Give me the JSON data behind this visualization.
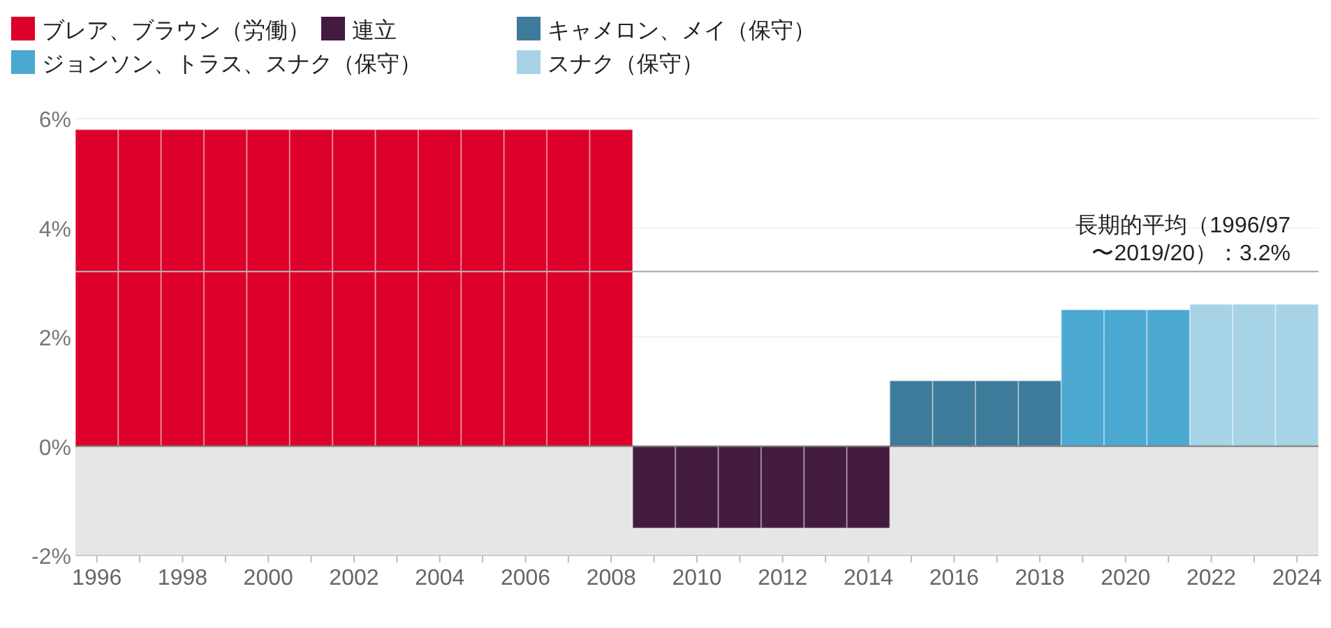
{
  "chart_data": {
    "type": "bar",
    "categories": [
      "1996",
      null,
      "1998",
      null,
      "2000",
      null,
      "2002",
      null,
      "2004",
      null,
      "2006",
      null,
      "2008",
      null,
      "2010",
      null,
      "2012",
      null,
      "2014",
      null,
      "2016",
      null,
      "2018",
      null,
      "2020",
      null,
      "2022",
      null,
      "2024"
    ],
    "series": [
      {
        "name": "ブレア、ブラウン（労働）",
        "color": "#dc002b",
        "values": [
          5.8,
          5.8,
          5.8,
          5.8,
          5.8,
          5.8,
          5.8,
          5.8,
          5.8,
          5.8,
          5.8,
          5.8,
          5.8,
          null,
          null,
          null,
          null,
          null,
          null,
          null,
          null,
          null,
          null,
          null,
          null,
          null,
          null,
          null,
          null
        ]
      },
      {
        "name": "連立",
        "color": "#431a40",
        "values": [
          null,
          null,
          null,
          null,
          null,
          null,
          null,
          null,
          null,
          null,
          null,
          null,
          null,
          -1.5,
          -1.5,
          -1.5,
          -1.5,
          -1.5,
          -1.5,
          null,
          null,
          null,
          null,
          null,
          null,
          null,
          null,
          null,
          null
        ]
      },
      {
        "name": "キャメロン、メイ（保守）",
        "color": "#3e7a99",
        "values": [
          null,
          null,
          null,
          null,
          null,
          null,
          null,
          null,
          null,
          null,
          null,
          null,
          null,
          null,
          null,
          null,
          null,
          null,
          null,
          1.2,
          1.2,
          1.2,
          1.2,
          null,
          null,
          null,
          null,
          null,
          null
        ]
      },
      {
        "name": "ジョンソン、トラス、スナク（保守）",
        "color": "#4ba8d1",
        "values": [
          null,
          null,
          null,
          null,
          null,
          null,
          null,
          null,
          null,
          null,
          null,
          null,
          null,
          null,
          null,
          null,
          null,
          null,
          null,
          null,
          null,
          null,
          null,
          2.5,
          2.5,
          2.5,
          null,
          null,
          null
        ]
      },
      {
        "name": "スナク（保守）",
        "color": "#a7d3e6",
        "values": [
          null,
          null,
          null,
          null,
          null,
          null,
          null,
          null,
          null,
          null,
          null,
          null,
          null,
          null,
          null,
          null,
          null,
          null,
          null,
          null,
          null,
          null,
          null,
          null,
          null,
          null,
          2.6,
          2.6,
          2.6
        ]
      }
    ],
    "ylim": [
      -2,
      6
    ],
    "yticks": [
      {
        "value": -2,
        "label": "-2%"
      },
      {
        "value": 0,
        "label": "0%"
      },
      {
        "value": 2,
        "label": "2%"
      },
      {
        "value": 4,
        "label": "4%"
      },
      {
        "value": 6,
        "label": "6%"
      }
    ],
    "grid": "y",
    "legend": "top left",
    "ref_lines": [
      {
        "axis": "y",
        "value": 3.2,
        "label": "長期的平均（1996/97\n〜2019/20）：3.2%",
        "color": "#b0b0b0"
      }
    ],
    "bands": [
      {
        "axis": "y",
        "from": -2,
        "to": 0,
        "color": "#e6e6e6"
      }
    ]
  }
}
